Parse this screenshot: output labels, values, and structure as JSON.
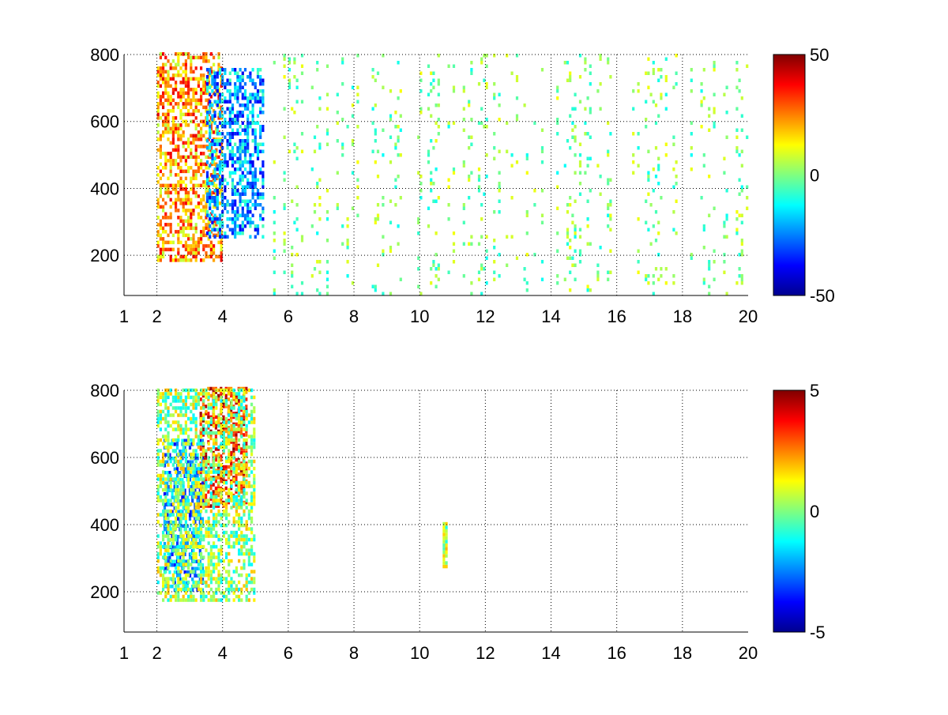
{
  "figure": {
    "background": "#ffffff"
  },
  "chart_data": [
    {
      "type": "heatmap",
      "title": "",
      "xlabel": "",
      "ylabel": "",
      "xlim": [
        1,
        20
      ],
      "ylim": [
        80,
        800
      ],
      "grid": true,
      "x_ticks": [
        1,
        2,
        4,
        6,
        8,
        10,
        12,
        14,
        16,
        18,
        20
      ],
      "y_ticks": [
        200,
        400,
        600,
        800
      ],
      "colorbar": {
        "min": -50,
        "max": 50,
        "ticks": [
          -50,
          0,
          50
        ],
        "colormap": "jet",
        "position": "right"
      },
      "features": [
        {
          "description": "warm band",
          "x_range": [
            2.0,
            4.0
          ],
          "y_range": [
            180,
            800
          ],
          "value_range": [
            5,
            40
          ]
        },
        {
          "description": "cool band",
          "x_range": [
            3.5,
            5.2
          ],
          "y_range": [
            250,
            750
          ],
          "value_range": [
            -40,
            -5
          ]
        },
        {
          "description": "scattered near-zero noise",
          "x_range": [
            5.0,
            20.0
          ],
          "y_range": [
            80,
            800
          ],
          "value_range": [
            -12,
            12
          ]
        }
      ]
    },
    {
      "type": "heatmap",
      "title": "",
      "xlabel": "",
      "ylabel": "",
      "xlim": [
        1,
        20
      ],
      "ylim": [
        80,
        800
      ],
      "grid": true,
      "x_ticks": [
        1,
        2,
        4,
        6,
        8,
        10,
        12,
        14,
        16,
        18,
        20
      ],
      "y_ticks": [
        200,
        400,
        600,
        800
      ],
      "colorbar": {
        "min": -5,
        "max": 5,
        "ticks": [
          -5,
          0,
          5
        ],
        "colormap": "jet",
        "position": "right"
      },
      "features": [
        {
          "description": "warm streaks",
          "x_range": [
            3.3,
            4.7
          ],
          "y_range": [
            450,
            800
          ],
          "value_range": [
            2,
            5
          ]
        },
        {
          "description": "cool band",
          "x_range": [
            2.2,
            3.4
          ],
          "y_range": [
            200,
            650
          ],
          "value_range": [
            -4,
            -1
          ]
        },
        {
          "description": "mixed region",
          "x_range": [
            2.0,
            5.0
          ],
          "y_range": [
            170,
            800
          ],
          "value_range": [
            -1.5,
            2
          ]
        },
        {
          "description": "isolated column",
          "x_range": [
            10.7,
            10.8
          ],
          "y_range": [
            270,
            400
          ],
          "value_range": [
            -1,
            2
          ]
        }
      ]
    }
  ]
}
